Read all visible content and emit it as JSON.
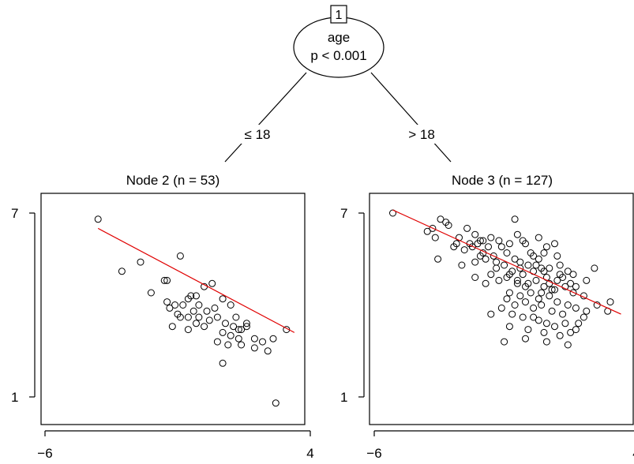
{
  "tree": {
    "root": {
      "id": "1",
      "variable": "age",
      "pvalue": "p < 0.001"
    },
    "left_edge": "≤ 18",
    "right_edge": "> 18"
  },
  "chart_data": [
    {
      "type": "scatter",
      "title": "Node 2 (n = 53)",
      "xlim": [
        -6,
        4
      ],
      "ylim": [
        1,
        7
      ],
      "xticks": [
        "−6",
        "4"
      ],
      "yticks": [
        "7",
        "1"
      ],
      "fit_line": {
        "color": "#e00000",
        "x": [
          -4,
          3.4
        ],
        "y": [
          6.5,
          3.1
        ]
      },
      "points": [
        [
          -4.0,
          6.8
        ],
        [
          -3.1,
          5.1
        ],
        [
          -2.4,
          5.4
        ],
        [
          -2.0,
          4.4
        ],
        [
          -1.5,
          4.8
        ],
        [
          -1.4,
          4.8
        ],
        [
          -0.9,
          5.6
        ],
        [
          -1.4,
          4.1
        ],
        [
          -1.1,
          4.0
        ],
        [
          -1.0,
          3.7
        ],
        [
          -0.8,
          4.0
        ],
        [
          -0.6,
          4.2
        ],
        [
          -0.5,
          4.3
        ],
        [
          -0.3,
          4.3
        ],
        [
          -0.2,
          4.0
        ],
        [
          0.0,
          4.6
        ],
        [
          0.3,
          4.7
        ],
        [
          -1.3,
          3.9
        ],
        [
          -0.9,
          3.6
        ],
        [
          -0.6,
          3.6
        ],
        [
          -0.4,
          3.8
        ],
        [
          -0.2,
          3.6
        ],
        [
          0.1,
          3.8
        ],
        [
          0.4,
          3.9
        ],
        [
          0.7,
          4.2
        ],
        [
          1.0,
          4.0
        ],
        [
          1.2,
          3.6
        ],
        [
          1.3,
          3.2
        ],
        [
          -1.2,
          3.3
        ],
        [
          -0.6,
          3.2
        ],
        [
          -0.3,
          3.4
        ],
        [
          0.0,
          3.3
        ],
        [
          0.2,
          3.5
        ],
        [
          0.5,
          3.6
        ],
        [
          0.8,
          3.4
        ],
        [
          1.1,
          3.3
        ],
        [
          1.4,
          3.2
        ],
        [
          1.6,
          3.4
        ],
        [
          0.7,
          3.1
        ],
        [
          1.0,
          3.0
        ],
        [
          1.3,
          2.9
        ],
        [
          1.6,
          3.3
        ],
        [
          1.9,
          2.9
        ],
        [
          2.2,
          2.8
        ],
        [
          2.6,
          2.9
        ],
        [
          3.1,
          3.2
        ],
        [
          0.5,
          2.8
        ],
        [
          0.9,
          2.7
        ],
        [
          1.4,
          2.7
        ],
        [
          1.9,
          2.6
        ],
        [
          2.4,
          2.5
        ],
        [
          0.7,
          2.1
        ],
        [
          2.7,
          0.8
        ]
      ]
    },
    {
      "type": "scatter",
      "title": "Node 3 (n = 127)",
      "xlim": [
        -6,
        4
      ],
      "ylim": [
        1,
        7
      ],
      "xticks": [
        "−6",
        "4"
      ],
      "yticks": [
        "7",
        "1"
      ],
      "fit_line": {
        "color": "#e00000",
        "x": [
          -5.3,
          3.3
        ],
        "y": [
          7.1,
          3.7
        ]
      },
      "points": [
        [
          -5.3,
          7.0
        ],
        [
          -4.0,
          6.4
        ],
        [
          -3.5,
          6.8
        ],
        [
          -3.2,
          6.6
        ],
        [
          -2.8,
          6.2
        ],
        [
          -2.4,
          6.0
        ],
        [
          -2.2,
          6.3
        ],
        [
          -2.0,
          6.1
        ],
        [
          -1.6,
          6.2
        ],
        [
          -1.2,
          5.9
        ],
        [
          -0.6,
          6.3
        ],
        [
          -0.3,
          6.0
        ],
        [
          0.0,
          5.6
        ],
        [
          0.5,
          5.9
        ],
        [
          -3.7,
          6.2
        ],
        [
          -3.0,
          5.9
        ],
        [
          -2.6,
          5.8
        ],
        [
          -2.3,
          5.9
        ],
        [
          -1.9,
          5.7
        ],
        [
          -1.5,
          5.6
        ],
        [
          -1.0,
          5.7
        ],
        [
          -0.7,
          5.5
        ],
        [
          -0.5,
          5.4
        ],
        [
          -0.2,
          5.3
        ],
        [
          0.2,
          5.5
        ],
        [
          0.6,
          5.2
        ],
        [
          1.0,
          5.3
        ],
        [
          1.3,
          5.1
        ],
        [
          2.3,
          5.2
        ],
        [
          -3.6,
          5.5
        ],
        [
          -2.7,
          5.3
        ],
        [
          -2.2,
          5.4
        ],
        [
          -1.8,
          5.5
        ],
        [
          -1.4,
          5.2
        ],
        [
          -1.1,
          5.3
        ],
        [
          -0.8,
          5.1
        ],
        [
          -0.4,
          5.0
        ],
        [
          0.0,
          5.1
        ],
        [
          0.3,
          5.2
        ],
        [
          0.5,
          4.9
        ],
        [
          0.9,
          4.8
        ],
        [
          1.1,
          4.9
        ],
        [
          -1.6,
          5.0
        ],
        [
          -1.3,
          4.8
        ],
        [
          -1.0,
          4.9
        ],
        [
          -0.6,
          4.7
        ],
        [
          -0.3,
          4.6
        ],
        [
          0.1,
          4.8
        ],
        [
          0.4,
          4.6
        ],
        [
          0.8,
          4.5
        ],
        [
          1.2,
          4.6
        ],
        [
          1.5,
          4.4
        ],
        [
          -2.2,
          4.9
        ],
        [
          -1.8,
          4.7
        ],
        [
          -0.9,
          4.4
        ],
        [
          -0.5,
          4.3
        ],
        [
          -0.1,
          4.4
        ],
        [
          0.2,
          4.2
        ],
        [
          0.6,
          4.3
        ],
        [
          0.9,
          4.1
        ],
        [
          1.3,
          4.0
        ],
        [
          1.6,
          3.9
        ],
        [
          -1.0,
          4.2
        ],
        [
          -0.7,
          4.0
        ],
        [
          -0.3,
          4.1
        ],
        [
          0.0,
          3.9
        ],
        [
          0.3,
          4.0
        ],
        [
          0.7,
          3.8
        ],
        [
          1.1,
          3.7
        ],
        [
          1.9,
          3.6
        ],
        [
          2.9,
          4.1
        ],
        [
          -1.2,
          3.9
        ],
        [
          -0.8,
          3.7
        ],
        [
          -0.4,
          3.6
        ],
        [
          0.2,
          3.5
        ],
        [
          0.5,
          3.4
        ],
        [
          0.8,
          3.3
        ],
        [
          1.2,
          3.4
        ],
        [
          1.6,
          3.2
        ],
        [
          -1.6,
          3.7
        ],
        [
          -0.9,
          3.3
        ],
        [
          -0.2,
          3.2
        ],
        [
          0.4,
          3.1
        ],
        [
          1.0,
          3.0
        ],
        [
          1.4,
          3.1
        ],
        [
          -0.3,
          2.9
        ],
        [
          0.5,
          2.8
        ],
        [
          1.3,
          2.7
        ],
        [
          -1.1,
          2.8
        ],
        [
          -0.7,
          6.8
        ],
        [
          -0.4,
          6.1
        ],
        [
          0.2,
          6.2
        ],
        [
          -1.9,
          6.1
        ],
        [
          -1.3,
          6.1
        ],
        [
          -0.9,
          6.0
        ],
        [
          -2.1,
          6.0
        ],
        [
          -3.3,
          6.7
        ],
        [
          -3.8,
          6.5
        ],
        [
          0.8,
          6.0
        ],
        [
          -0.1,
          5.7
        ],
        [
          1.5,
          5.0
        ],
        [
          2.0,
          4.8
        ],
        [
          0.9,
          5.6
        ],
        [
          1.9,
          4.3
        ],
        [
          0.4,
          5.7
        ],
        [
          -1.7,
          5.9
        ],
        [
          -2.5,
          6.5
        ],
        [
          -2.9,
          6.0
        ],
        [
          -0.5,
          5.2
        ],
        [
          0.1,
          5.3
        ],
        [
          0.6,
          4.7
        ],
        [
          1.4,
          4.7
        ],
        [
          -0.2,
          4.7
        ],
        [
          0.3,
          4.4
        ],
        [
          1.7,
          3.4
        ],
        [
          2.0,
          3.8
        ],
        [
          0.0,
          3.6
        ],
        [
          0.7,
          4.5
        ],
        [
          2.4,
          4.0
        ],
        [
          2.8,
          3.8
        ],
        [
          -2.0,
          5.6
        ],
        [
          -1.4,
          5.4
        ],
        [
          -0.9,
          5.0
        ],
        [
          -0.6,
          4.8
        ],
        [
          0.4,
          5.1
        ],
        [
          1.0,
          5.0
        ],
        [
          1.6,
          4.6
        ]
      ]
    }
  ]
}
